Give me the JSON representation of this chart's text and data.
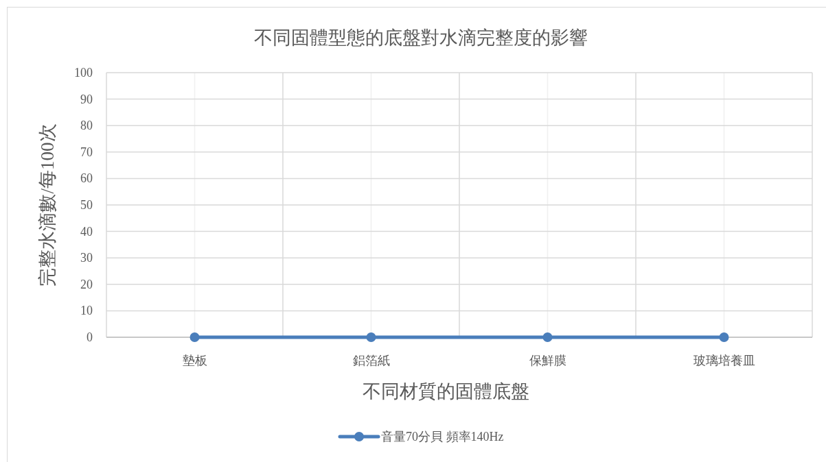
{
  "chart_data": {
    "type": "line",
    "title": "不同固體型態的底盤對水滴完整度的影響",
    "xlabel": "不同材質的固體底盤",
    "ylabel": "完整水滴數/每100次",
    "categories": [
      "墊板",
      "鋁箔紙",
      "保鮮膜",
      "玻璃培養皿"
    ],
    "series": [
      {
        "name": "音量70分貝 頻率140Hz",
        "color": "#4a7ebb",
        "values": [
          0,
          0,
          0,
          0
        ]
      }
    ],
    "ylim": [
      0,
      100
    ],
    "yticks": [
      0,
      10,
      20,
      30,
      40,
      50,
      60,
      70,
      80,
      90,
      100
    ],
    "grid": true,
    "legend": "bottom",
    "marker": "circle",
    "line_style": "solid"
  }
}
